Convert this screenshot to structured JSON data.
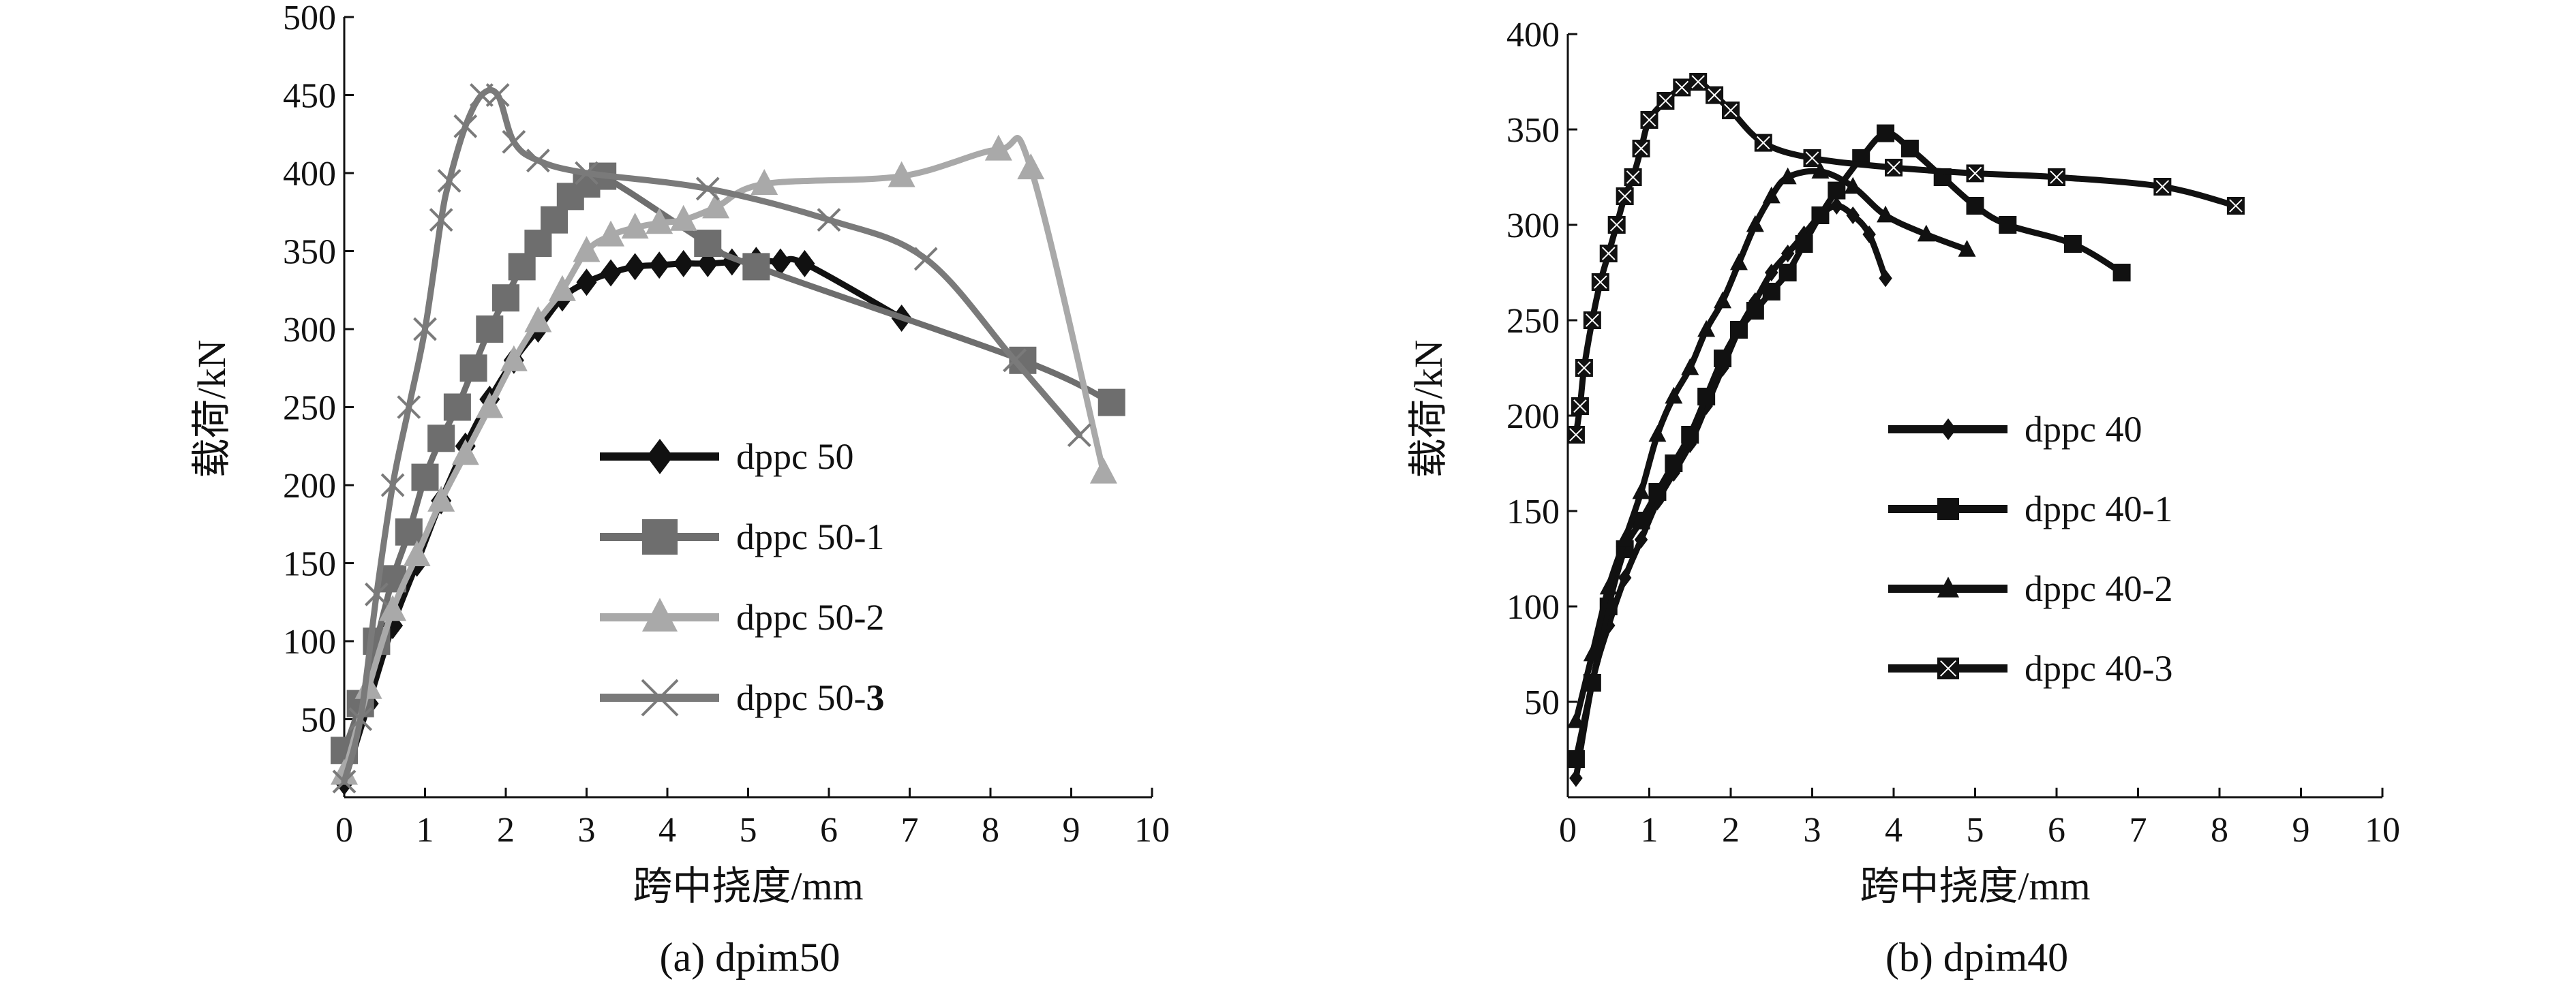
{
  "chart_data": [
    {
      "id": "left",
      "type": "line",
      "caption": "(a) dpim50",
      "xlabel": "跨中挠度/mm",
      "ylabel": "载荷/kN",
      "xlim": [
        0,
        10
      ],
      "ylim": [
        0,
        500
      ],
      "xticks": [
        0,
        1,
        2,
        3,
        4,
        5,
        6,
        7,
        8,
        9,
        10
      ],
      "yticks": [
        50,
        100,
        150,
        200,
        250,
        300,
        350,
        400,
        450,
        500
      ],
      "series": [
        {
          "name": "dppc 50",
          "color": "#111111",
          "marker": "diamond",
          "x": [
            0,
            0.3,
            0.6,
            0.9,
            1.2,
            1.5,
            1.8,
            2.1,
            2.4,
            2.7,
            3.0,
            3.3,
            3.6,
            3.9,
            4.2,
            4.5,
            4.8,
            5.1,
            5.4,
            5.7,
            6.9
          ],
          "y": [
            10,
            60,
            110,
            150,
            190,
            225,
            255,
            280,
            300,
            320,
            330,
            336,
            340,
            341,
            342,
            342,
            343,
            344,
            343,
            342,
            307
          ]
        },
        {
          "name": "dppc 50-1",
          "color": "#6e6e6e",
          "marker": "square",
          "x": [
            0,
            0.2,
            0.4,
            0.6,
            0.8,
            1.0,
            1.2,
            1.4,
            1.6,
            1.8,
            2.0,
            2.2,
            2.4,
            2.6,
            2.8,
            3.0,
            3.2,
            4.5,
            5.1,
            8.4,
            9.5
          ],
          "y": [
            30,
            60,
            100,
            140,
            170,
            205,
            230,
            250,
            275,
            300,
            320,
            340,
            355,
            370,
            385,
            393,
            398,
            355,
            340,
            280,
            253
          ]
        },
        {
          "name": "dppc 50-2",
          "color": "#a9a9a9",
          "marker": "triangle",
          "x": [
            0,
            0.3,
            0.6,
            0.9,
            1.2,
            1.5,
            1.8,
            2.1,
            2.4,
            2.7,
            3.0,
            3.3,
            3.6,
            3.9,
            4.2,
            4.6,
            5.2,
            6.9,
            8.1,
            8.5,
            9.4
          ],
          "y": [
            15,
            70,
            120,
            155,
            190,
            220,
            250,
            280,
            305,
            325,
            350,
            360,
            365,
            368,
            370,
            378,
            393,
            398,
            415,
            403,
            208
          ]
        },
        {
          "name": "dppc 50-3",
          "color": "#7a7a7a",
          "marker": "x",
          "x": [
            0,
            0.2,
            0.4,
            0.6,
            0.8,
            1.0,
            1.2,
            1.3,
            1.5,
            1.7,
            1.9,
            2.1,
            2.4,
            3.0,
            4.5,
            6.0,
            7.2,
            8.3,
            9.1
          ],
          "y": [
            10,
            50,
            130,
            200,
            250,
            300,
            370,
            395,
            430,
            450,
            450,
            420,
            408,
            400,
            390,
            370,
            345,
            280,
            232
          ]
        }
      ],
      "legend": [
        {
          "name": "dppc 50",
          "prefix": "dppc 50",
          "bold": ""
        },
        {
          "name": "dppc 50-1",
          "prefix": "dppc 50-1",
          "bold": ""
        },
        {
          "name": "dppc 50-2",
          "prefix": "dppc 50-2",
          "bold": ""
        },
        {
          "name": "dppc 50-3",
          "prefix": "dppc 50-",
          "bold": "3"
        }
      ]
    },
    {
      "id": "right",
      "type": "line",
      "caption": "(b) dpim40",
      "xlabel": "跨中挠度/mm",
      "ylabel": "载荷/kN",
      "xlim": [
        0,
        10
      ],
      "ylim": [
        0,
        400
      ],
      "xticks": [
        0,
        1,
        2,
        3,
        4,
        5,
        6,
        7,
        8,
        9,
        10
      ],
      "yticks": [
        50,
        100,
        150,
        200,
        250,
        300,
        350,
        400
      ],
      "series": [
        {
          "name": "dppc 40",
          "color": "#111111",
          "marker": "diamond",
          "x": [
            0.1,
            0.3,
            0.5,
            0.7,
            0.9,
            1.1,
            1.3,
            1.5,
            1.7,
            1.9,
            2.1,
            2.3,
            2.5,
            2.7,
            2.9,
            3.1,
            3.3,
            3.5,
            3.7,
            3.9
          ],
          "y": [
            10,
            60,
            90,
            115,
            135,
            155,
            170,
            185,
            205,
            225,
            245,
            260,
            275,
            285,
            295,
            305,
            310,
            305,
            295,
            272
          ]
        },
        {
          "name": "dppc 40-1",
          "color": "#111111",
          "marker": "square",
          "x": [
            0.1,
            0.3,
            0.5,
            0.7,
            0.9,
            1.1,
            1.3,
            1.5,
            1.7,
            1.9,
            2.1,
            2.3,
            2.5,
            2.7,
            2.9,
            3.1,
            3.3,
            3.6,
            3.9,
            4.2,
            4.6,
            5.0,
            5.4,
            6.2,
            6.8
          ],
          "y": [
            20,
            60,
            100,
            130,
            145,
            160,
            175,
            190,
            210,
            230,
            245,
            255,
            265,
            275,
            290,
            305,
            318,
            335,
            348,
            340,
            325,
            310,
            300,
            290,
            275
          ]
        },
        {
          "name": "dppc 40-2",
          "color": "#111111",
          "marker": "triangle",
          "x": [
            0.1,
            0.3,
            0.5,
            0.7,
            0.9,
            1.1,
            1.3,
            1.5,
            1.7,
            1.9,
            2.1,
            2.3,
            2.5,
            2.7,
            3.1,
            3.5,
            3.9,
            4.4,
            4.9
          ],
          "y": [
            40,
            75,
            110,
            135,
            160,
            190,
            210,
            225,
            245,
            260,
            280,
            300,
            315,
            325,
            328,
            320,
            305,
            295,
            287
          ]
        },
        {
          "name": "dppc 40-3",
          "color": "#111111",
          "marker": "boxx",
          "x": [
            0.1,
            0.15,
            0.2,
            0.3,
            0.4,
            0.5,
            0.6,
            0.7,
            0.8,
            0.9,
            1.0,
            1.2,
            1.4,
            1.6,
            1.8,
            2.0,
            2.4,
            3.0,
            4.0,
            5.0,
            6.0,
            7.3,
            8.2
          ],
          "y": [
            190,
            205,
            225,
            250,
            270,
            285,
            300,
            315,
            325,
            340,
            355,
            365,
            372,
            375,
            368,
            360,
            343,
            335,
            330,
            327,
            325,
            320,
            310
          ]
        }
      ],
      "legend": [
        {
          "name": "dppc 40",
          "prefix": "dppc 40",
          "bold": ""
        },
        {
          "name": "dppc 40-1",
          "prefix": "dppc 40-1",
          "bold": ""
        },
        {
          "name": "dppc 40-2",
          "prefix": "dppc 40-2",
          "bold": ""
        },
        {
          "name": "dppc 40-3",
          "prefix": "dppc 40-3",
          "bold": ""
        }
      ]
    }
  ]
}
